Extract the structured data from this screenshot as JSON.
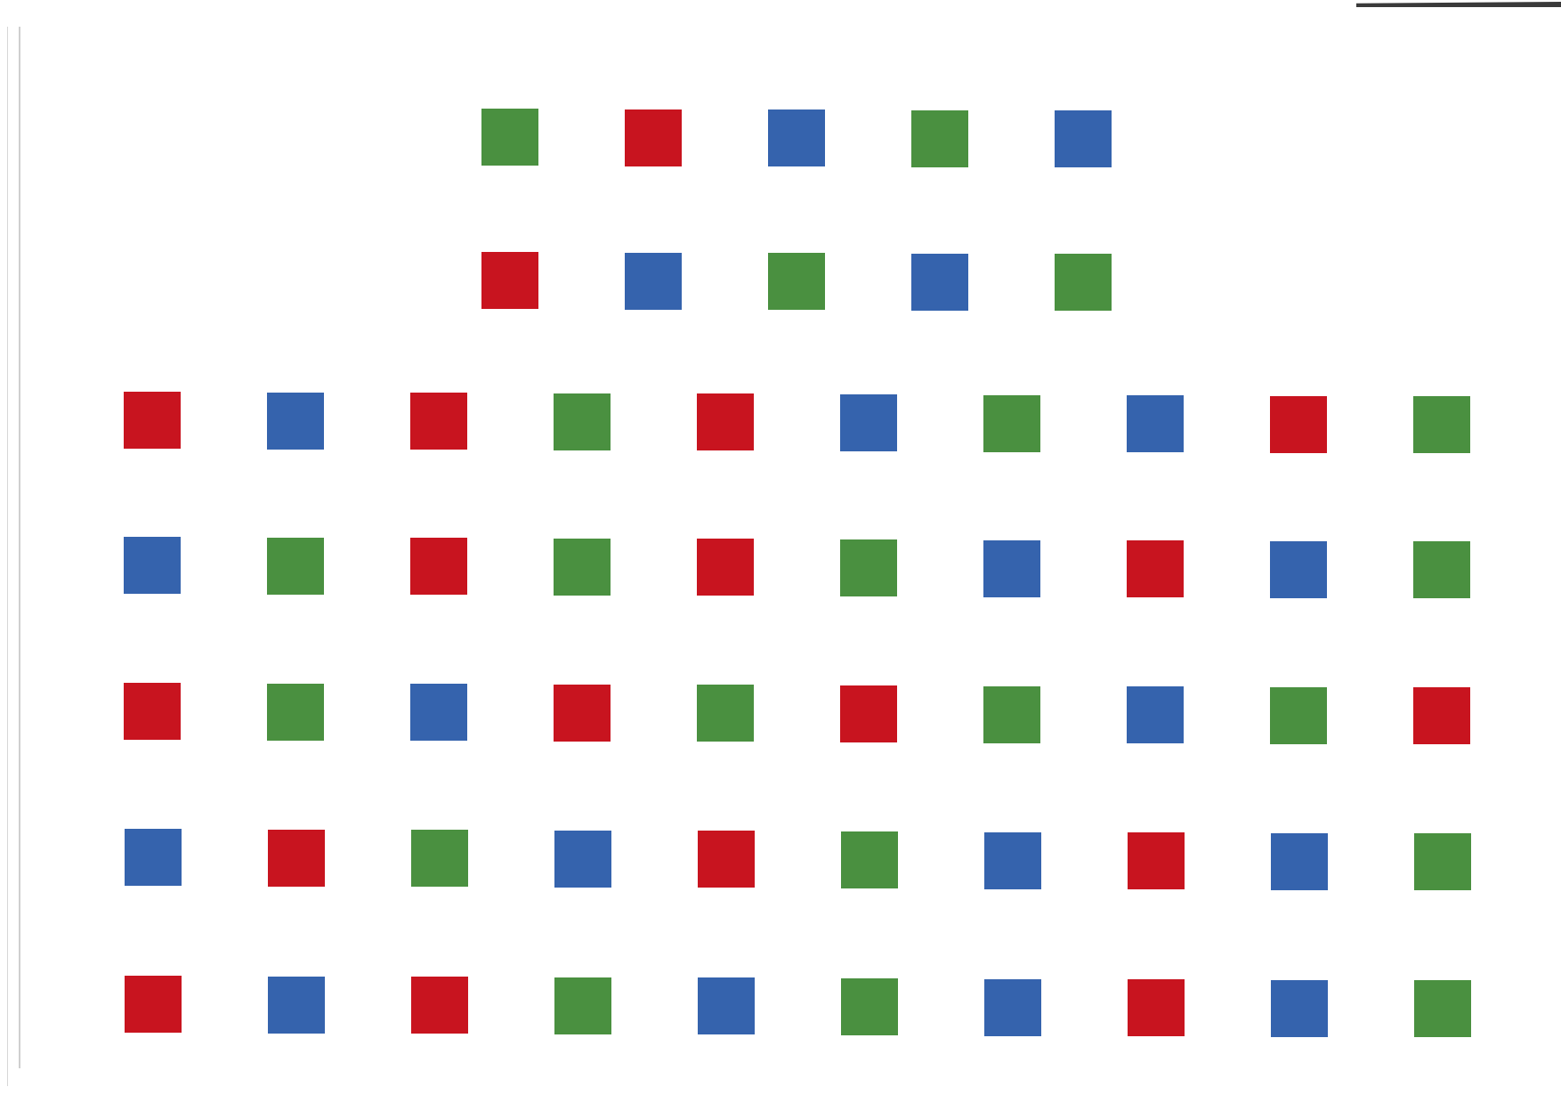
{
  "colors": {
    "red": "#c8141f",
    "green": "#4a9040",
    "blue": "#3563ad",
    "background": "#ffffff"
  },
  "rows": [
    [
      "green",
      "red",
      "blue",
      "green",
      "blue"
    ],
    [
      "red",
      "blue",
      "green",
      "blue",
      "green"
    ],
    [
      "red",
      "blue",
      "red",
      "green",
      "red",
      "blue",
      "green",
      "blue",
      "red",
      "green"
    ],
    [
      "blue",
      "green",
      "red",
      "green",
      "red",
      "green",
      "blue",
      "red",
      "blue",
      "green"
    ],
    [
      "red",
      "green",
      "blue",
      "red",
      "green",
      "red",
      "green",
      "blue",
      "green",
      "red"
    ],
    [
      "blue",
      "red",
      "green",
      "blue",
      "red",
      "green",
      "blue",
      "red",
      "blue",
      "green"
    ],
    [
      "red",
      "blue",
      "red",
      "green",
      "blue",
      "green",
      "blue",
      "red",
      "blue",
      "green"
    ]
  ]
}
